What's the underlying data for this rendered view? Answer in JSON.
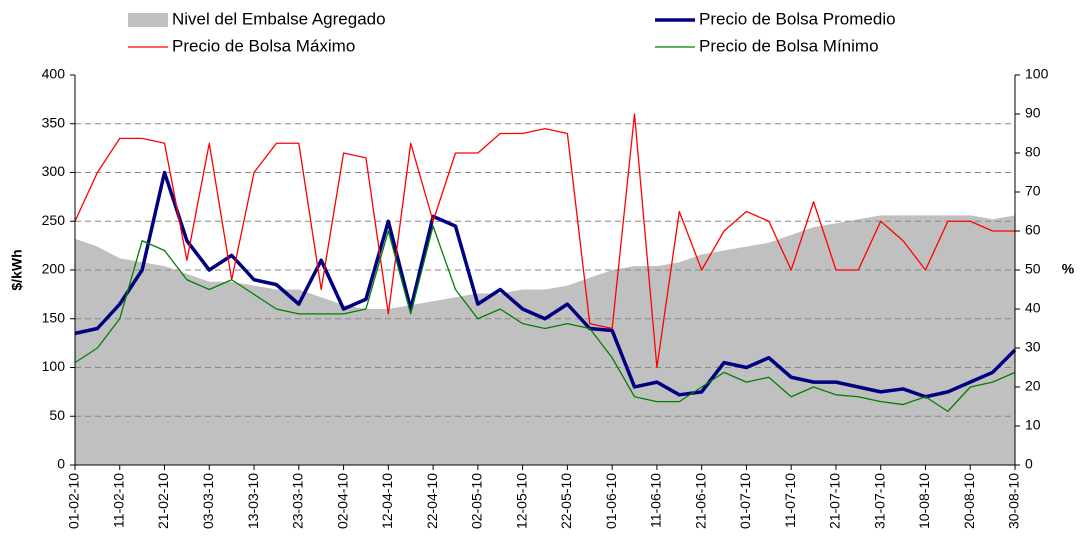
{
  "chart_data": {
    "type": "line",
    "categories": [
      "01-02-10",
      null,
      "11-02-10",
      null,
      "21-02-10",
      null,
      "03-03-10",
      null,
      "13-03-10",
      null,
      "23-03-10",
      null,
      "02-04-10",
      null,
      "12-04-10",
      null,
      "22-04-10",
      null,
      "02-05-10",
      null,
      "12-05-10",
      null,
      "22-05-10",
      null,
      "01-06-10",
      null,
      "11-06-10",
      null,
      "21-06-10",
      null,
      "01-07-10",
      null,
      "11-07-10",
      null,
      "21-07-10",
      null,
      "31-07-10",
      null,
      "10-08-10",
      null,
      "20-08-10",
      null,
      "30-08-10"
    ],
    "ylabel": "$/kWh",
    "y2label": "%",
    "ylim": [
      0,
      400
    ],
    "yticks": [
      0,
      50,
      100,
      150,
      200,
      250,
      300,
      350,
      400
    ],
    "y2lim": [
      0,
      100
    ],
    "y2ticks": [
      0,
      10,
      20,
      30,
      40,
      50,
      60,
      70,
      80,
      90,
      100
    ],
    "grid": true,
    "series": [
      {
        "name": "Nivel del Embalse Agregado",
        "type": "area",
        "axis": "y2",
        "color": "#c0c0c0",
        "values": [
          58,
          56,
          53,
          52,
          51,
          49,
          47,
          47,
          46,
          45,
          45,
          43,
          41,
          40,
          40,
          41,
          42,
          43,
          44,
          44,
          45,
          45,
          46,
          48,
          50,
          51,
          51,
          52,
          54,
          55,
          56,
          57,
          59,
          61,
          62,
          63,
          64,
          64,
          64,
          64,
          64,
          63,
          64
        ]
      },
      {
        "name": "Precio de Bolsa Promedio",
        "color": "#000080",
        "width": 3.5,
        "values": [
          135,
          140,
          165,
          200,
          300,
          230,
          200,
          215,
          190,
          185,
          165,
          210,
          160,
          170,
          250,
          160,
          255,
          245,
          165,
          180,
          160,
          150,
          165,
          140,
          138,
          80,
          85,
          72,
          75,
          105,
          100,
          110,
          90,
          85,
          85,
          80,
          75,
          78,
          70,
          75,
          85,
          95,
          118
        ]
      },
      {
        "name": "Precio de Bolsa Máximo",
        "color": "#ff0000",
        "width": 1.3,
        "values": [
          250,
          300,
          335,
          335,
          330,
          210,
          330,
          190,
          300,
          330,
          330,
          180,
          320,
          315,
          155,
          330,
          250,
          320,
          320,
          340,
          340,
          345,
          340,
          145,
          140,
          360,
          100,
          260,
          200,
          240,
          260,
          250,
          200,
          270,
          200,
          200,
          250,
          230,
          200,
          250,
          250,
          240,
          240
        ]
      },
      {
        "name": "Precio de Bolsa Mínimo",
        "color": "#008000",
        "width": 1.3,
        "values": [
          105,
          120,
          150,
          230,
          220,
          190,
          180,
          190,
          175,
          160,
          155,
          155,
          155,
          160,
          240,
          155,
          245,
          180,
          150,
          160,
          145,
          140,
          145,
          140,
          110,
          70,
          65,
          65,
          80,
          95,
          85,
          90,
          70,
          80,
          72,
          70,
          65,
          62,
          70,
          55,
          80,
          85,
          95
        ]
      }
    ]
  }
}
